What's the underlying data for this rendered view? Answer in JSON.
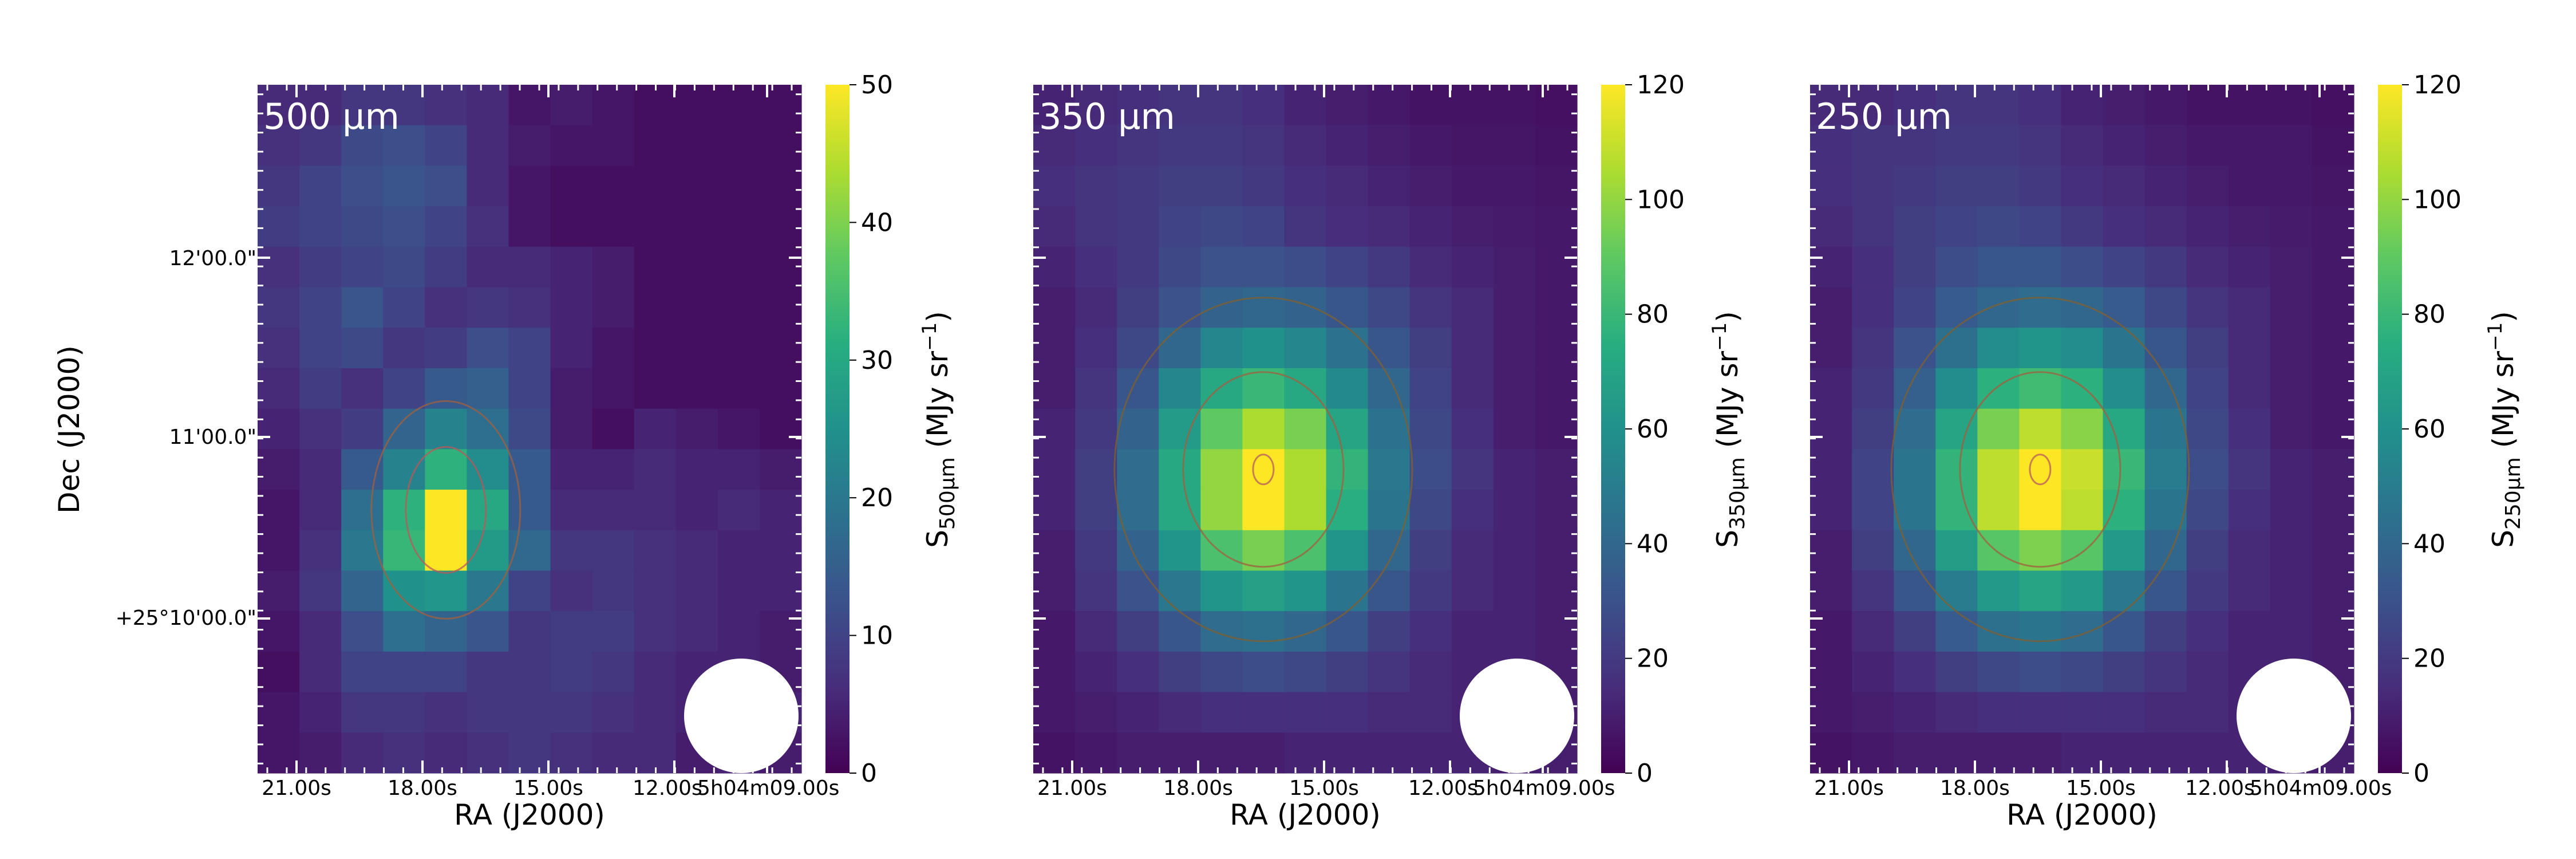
{
  "figure": {
    "shared_ylabel": "Dec (J2000)",
    "colormap": "viridis",
    "beam_color": "#ffffff",
    "contour_colors": [
      "#b85a5a",
      "#a06040",
      "#806030"
    ]
  },
  "chart_data": [
    {
      "type": "heatmap",
      "title": "500 µm",
      "xlabel": "RA (J2000)",
      "ylabel": "Dec (J2000)",
      "xticklabels": [
        "21.00s",
        "18.00s",
        "15.00s",
        "12.00s",
        "5h04m09.00s"
      ],
      "yticklabels": [
        "12'00.0\"",
        "11'00.0\"",
        "+25°10'00.0\""
      ],
      "colorbar": {
        "label_main": "S",
        "label_sub": "500µm",
        "label_unit": " (MJy sr",
        "label_exp": "−1",
        "label_close": ")",
        "range": [
          0,
          50
        ],
        "ticks": [
          "0",
          "10",
          "20",
          "30",
          "40",
          "50"
        ]
      },
      "grid": [
        [
          6,
          6,
          8,
          8,
          7,
          6,
          3,
          4,
          3,
          2,
          2,
          2,
          2
        ],
        [
          7,
          8,
          11,
          12,
          10,
          6,
          4,
          3,
          3,
          2,
          2,
          2,
          2
        ],
        [
          8,
          10,
          12,
          13,
          12,
          6,
          3,
          2,
          2,
          2,
          2,
          2,
          2
        ],
        [
          9,
          10,
          11,
          12,
          10,
          7,
          3,
          2,
          2,
          2,
          2,
          2,
          2
        ],
        [
          7,
          9,
          10,
          11,
          9,
          6,
          6,
          5,
          4,
          2,
          2,
          2,
          2
        ],
        [
          8,
          10,
          13,
          10,
          7,
          8,
          7,
          5,
          4,
          2,
          2,
          2,
          2
        ],
        [
          7,
          10,
          11,
          8,
          9,
          12,
          10,
          5,
          3,
          2,
          2,
          2,
          2
        ],
        [
          6,
          9,
          7,
          10,
          14,
          15,
          10,
          4,
          3,
          2,
          2,
          2,
          2
        ],
        [
          5,
          7,
          9,
          16,
          22,
          18,
          11,
          4,
          2,
          5,
          4,
          3,
          2
        ],
        [
          4,
          6,
          14,
          22,
          32,
          24,
          14,
          5,
          5,
          6,
          5,
          5,
          4
        ],
        [
          3,
          6,
          18,
          32,
          50,
          30,
          14,
          6,
          6,
          6,
          5,
          6,
          5
        ],
        [
          3,
          7,
          20,
          33,
          50,
          27,
          17,
          8,
          8,
          7,
          6,
          5,
          5
        ],
        [
          4,
          8,
          16,
          25,
          26,
          20,
          10,
          7,
          8,
          7,
          6,
          5,
          5
        ],
        [
          3,
          6,
          12,
          18,
          16,
          13,
          8,
          9,
          9,
          7,
          6,
          5,
          4
        ],
        [
          2,
          6,
          10,
          10,
          10,
          8,
          8,
          9,
          8,
          6,
          5,
          5,
          4
        ],
        [
          3,
          5,
          8,
          8,
          7,
          8,
          8,
          8,
          7,
          6,
          5,
          6,
          5
        ],
        [
          3,
          4,
          6,
          7,
          6,
          7,
          8,
          7,
          6,
          6,
          4,
          5,
          4
        ]
      ]
    },
    {
      "type": "heatmap",
      "title": "350 µm",
      "xlabel": "RA (J2000)",
      "xticklabels": [
        "21.00s",
        "18.00s",
        "15.00s",
        "12.00s",
        "5h04m09.00s"
      ],
      "colorbar": {
        "label_main": "S",
        "label_sub": "350µm",
        "label_unit": " (MJy sr",
        "label_exp": "−1",
        "label_close": ")",
        "range": [
          0,
          120
        ],
        "ticks": [
          "0",
          "20",
          "40",
          "60",
          "80",
          "100",
          "120"
        ]
      },
      "grid": [
        [
          12,
          14,
          16,
          18,
          18,
          16,
          12,
          10,
          8,
          6,
          6,
          6,
          5
        ],
        [
          14,
          16,
          18,
          20,
          20,
          18,
          14,
          12,
          10,
          8,
          7,
          7,
          6
        ],
        [
          16,
          18,
          20,
          22,
          22,
          20,
          16,
          14,
          12,
          10,
          8,
          8,
          7
        ],
        [
          14,
          18,
          20,
          24,
          26,
          24,
          18,
          15,
          14,
          12,
          10,
          9,
          8
        ],
        [
          12,
          16,
          20,
          26,
          30,
          30,
          28,
          24,
          20,
          14,
          12,
          10,
          8
        ],
        [
          10,
          14,
          22,
          30,
          38,
          40,
          38,
          32,
          26,
          18,
          14,
          10,
          8
        ],
        [
          10,
          16,
          26,
          40,
          55,
          60,
          55,
          45,
          32,
          22,
          14,
          10,
          8
        ],
        [
          10,
          18,
          32,
          55,
          72,
          80,
          72,
          56,
          40,
          24,
          14,
          10,
          8
        ],
        [
          12,
          20,
          38,
          65,
          90,
          105,
          95,
          70,
          45,
          26,
          16,
          10,
          8
        ],
        [
          12,
          22,
          42,
          72,
          100,
          120,
          105,
          78,
          48,
          28,
          18,
          12,
          10
        ],
        [
          12,
          22,
          42,
          72,
          100,
          120,
          105,
          75,
          46,
          26,
          16,
          12,
          10
        ],
        [
          10,
          20,
          38,
          62,
          85,
          95,
          85,
          62,
          40,
          22,
          14,
          12,
          10
        ],
        [
          10,
          18,
          30,
          48,
          62,
          68,
          62,
          46,
          32,
          20,
          14,
          12,
          10
        ],
        [
          8,
          14,
          22,
          32,
          42,
          44,
          40,
          32,
          22,
          16,
          12,
          12,
          10
        ],
        [
          8,
          12,
          16,
          22,
          26,
          28,
          26,
          22,
          18,
          14,
          12,
          12,
          10
        ],
        [
          8,
          10,
          12,
          14,
          16,
          16,
          16,
          16,
          14,
          14,
          12,
          12,
          10
        ],
        [
          6,
          8,
          10,
          10,
          10,
          10,
          12,
          12,
          12,
          12,
          12,
          10,
          10
        ]
      ]
    },
    {
      "type": "heatmap",
      "title": "250 µm",
      "xlabel": "RA (J2000)",
      "xticklabels": [
        "21.00s",
        "18.00s",
        "15.00s",
        "12.00s",
        "5h04m09.00s"
      ],
      "colorbar": {
        "label_main": "S",
        "label_sub": "250µm",
        "label_unit": " (MJy sr",
        "label_exp": "−1",
        "label_close": ")",
        "range": [
          0,
          120
        ],
        "ticks": [
          "0",
          "20",
          "40",
          "60",
          "80",
          "100",
          "120"
        ]
      },
      "grid": [
        [
          14,
          14,
          16,
          18,
          18,
          16,
          12,
          10,
          8,
          6,
          6,
          6,
          5
        ],
        [
          16,
          18,
          18,
          20,
          20,
          18,
          14,
          12,
          10,
          8,
          8,
          8,
          6
        ],
        [
          16,
          18,
          20,
          22,
          22,
          20,
          16,
          14,
          12,
          10,
          8,
          8,
          7
        ],
        [
          14,
          18,
          22,
          24,
          26,
          24,
          20,
          16,
          14,
          12,
          10,
          9,
          8
        ],
        [
          12,
          16,
          22,
          28,
          32,
          32,
          28,
          24,
          20,
          14,
          12,
          10,
          8
        ],
        [
          10,
          16,
          24,
          34,
          40,
          42,
          40,
          34,
          26,
          18,
          14,
          10,
          8
        ],
        [
          10,
          18,
          30,
          44,
          58,
          62,
          58,
          46,
          32,
          22,
          14,
          10,
          8
        ],
        [
          12,
          20,
          36,
          58,
          76,
          82,
          76,
          58,
          40,
          24,
          14,
          10,
          8
        ],
        [
          12,
          22,
          42,
          70,
          95,
          108,
          98,
          72,
          46,
          26,
          16,
          10,
          8
        ],
        [
          12,
          24,
          46,
          78,
          108,
          120,
          110,
          80,
          50,
          28,
          18,
          12,
          10
        ],
        [
          12,
          24,
          46,
          78,
          108,
          120,
          108,
          76,
          46,
          26,
          16,
          12,
          10
        ],
        [
          10,
          22,
          40,
          66,
          88,
          96,
          88,
          64,
          40,
          22,
          14,
          12,
          10
        ],
        [
          10,
          18,
          32,
          50,
          64,
          70,
          64,
          48,
          32,
          20,
          14,
          12,
          10
        ],
        [
          8,
          14,
          22,
          34,
          44,
          46,
          42,
          32,
          22,
          16,
          12,
          12,
          10
        ],
        [
          8,
          12,
          16,
          22,
          26,
          28,
          26,
          22,
          18,
          14,
          12,
          12,
          10
        ],
        [
          8,
          10,
          12,
          14,
          16,
          16,
          16,
          16,
          14,
          14,
          12,
          12,
          10
        ],
        [
          6,
          8,
          10,
          10,
          10,
          10,
          12,
          12,
          12,
          12,
          12,
          10,
          10
        ]
      ]
    }
  ]
}
